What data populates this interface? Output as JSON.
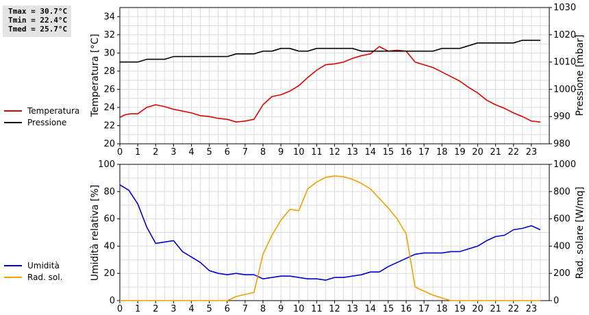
{
  "stats": {
    "tmax": "Tmax = 30.7°C",
    "tmin": "Tmin = 22.4°C",
    "tmed": "Tmed = 25.7°C"
  },
  "chart_data": [
    {
      "type": "line",
      "title": "",
      "xlabel": "",
      "ylabel": "Temperatura [°C]",
      "y2label": "Pressione [mbar]",
      "xlim": [
        0,
        24
      ],
      "ylim": [
        20,
        35
      ],
      "y2lim": [
        980,
        1030
      ],
      "xticks": [
        "0",
        "1",
        "2",
        "3",
        "4",
        "5",
        "6",
        "7",
        "8",
        "9",
        "10",
        "11",
        "12",
        "13",
        "14",
        "15",
        "16",
        "17",
        "18",
        "19",
        "20",
        "21",
        "22",
        "23"
      ],
      "yticks": [
        "20",
        "22",
        "24",
        "26",
        "28",
        "30",
        "32",
        "34"
      ],
      "y2ticks": [
        "980",
        "990",
        "1000",
        "1010",
        "1020",
        "1030"
      ],
      "grid": true,
      "legend": "left",
      "colors": {
        "Temperatura": "#dd0000",
        "Pressione": "#000000"
      },
      "series": [
        {
          "name": "Temperatura",
          "axis": "left",
          "points": [
            [
              0,
              22.9
            ],
            [
              0.3,
              23.2
            ],
            [
              0.6,
              23.3
            ],
            [
              1,
              23.3
            ],
            [
              1.5,
              24.0
            ],
            [
              2,
              24.3
            ],
            [
              2.5,
              24.1
            ],
            [
              3,
              23.8
            ],
            [
              3.5,
              23.6
            ],
            [
              4,
              23.4
            ],
            [
              4.5,
              23.1
            ],
            [
              5,
              23.0
            ],
            [
              5.5,
              22.8
            ],
            [
              6,
              22.7
            ],
            [
              6.5,
              22.4
            ],
            [
              7,
              22.5
            ],
            [
              7.5,
              22.7
            ],
            [
              8,
              24.3
            ],
            [
              8.5,
              25.2
            ],
            [
              9,
              25.4
            ],
            [
              9.5,
              25.8
            ],
            [
              10,
              26.4
            ],
            [
              10.5,
              27.3
            ],
            [
              11,
              28.1
            ],
            [
              11.5,
              28.7
            ],
            [
              12,
              28.8
            ],
            [
              12.5,
              29.0
            ],
            [
              13,
              29.4
            ],
            [
              13.5,
              29.7
            ],
            [
              14,
              29.9
            ],
            [
              14.5,
              30.7
            ],
            [
              15,
              30.2
            ],
            [
              15.5,
              30.3
            ],
            [
              16,
              30.2
            ],
            [
              16.5,
              29.0
            ],
            [
              17,
              28.7
            ],
            [
              17.5,
              28.4
            ],
            [
              18,
              27.9
            ],
            [
              18.5,
              27.4
            ],
            [
              19,
              26.9
            ],
            [
              19.5,
              26.2
            ],
            [
              20,
              25.6
            ],
            [
              20.5,
              24.8
            ],
            [
              21,
              24.3
            ],
            [
              21.5,
              23.9
            ],
            [
              22,
              23.4
            ],
            [
              22.5,
              23.0
            ],
            [
              23,
              22.5
            ],
            [
              23.5,
              22.4
            ]
          ]
        },
        {
          "name": "Pressione",
          "axis": "right",
          "points": [
            [
              0,
              1010
            ],
            [
              1,
              1010
            ],
            [
              1.5,
              1011
            ],
            [
              2.5,
              1011
            ],
            [
              3,
              1012
            ],
            [
              6,
              1012
            ],
            [
              6.5,
              1013
            ],
            [
              7.5,
              1013
            ],
            [
              8,
              1014
            ],
            [
              8.5,
              1014
            ],
            [
              9,
              1015
            ],
            [
              9.5,
              1015
            ],
            [
              10,
              1014
            ],
            [
              10.5,
              1014
            ],
            [
              11,
              1015
            ],
            [
              13,
              1015
            ],
            [
              13.5,
              1014
            ],
            [
              16.5,
              1014
            ],
            [
              17.5,
              1014
            ],
            [
              18,
              1015
            ],
            [
              19,
              1015
            ],
            [
              20,
              1017
            ],
            [
              21.5,
              1017
            ],
            [
              22,
              1017
            ],
            [
              22.5,
              1018
            ],
            [
              23.5,
              1018
            ]
          ]
        }
      ]
    },
    {
      "type": "line",
      "title": "",
      "xlabel": "",
      "ylabel": "Umidità relativa [%]",
      "y2label": "Rad. solare [W/mq]",
      "xlim": [
        0,
        24
      ],
      "ylim": [
        0,
        100
      ],
      "y2lim": [
        0,
        1000
      ],
      "xticks": [
        "0",
        "1",
        "2",
        "3",
        "4",
        "5",
        "6",
        "7",
        "8",
        "9",
        "10",
        "11",
        "12",
        "13",
        "14",
        "15",
        "16",
        "17",
        "18",
        "19",
        "20",
        "21",
        "22",
        "23"
      ],
      "yticks": [
        "0",
        "20",
        "40",
        "60",
        "80",
        "100"
      ],
      "y2ticks": [
        "0",
        "200",
        "400",
        "600",
        "800",
        "1000"
      ],
      "grid": true,
      "legend": "left",
      "colors": {
        "Umidità": "#0000cc",
        "Rad. sol.": "#f0a000"
      },
      "series": [
        {
          "name": "Umidità",
          "axis": "left",
          "points": [
            [
              0,
              85
            ],
            [
              0.5,
              81
            ],
            [
              1,
              71
            ],
            [
              1.5,
              54
            ],
            [
              2,
              42
            ],
            [
              2.5,
              43
            ],
            [
              3,
              44
            ],
            [
              3.5,
              36
            ],
            [
              4,
              32
            ],
            [
              4.5,
              28
            ],
            [
              5,
              22
            ],
            [
              5.5,
              20
            ],
            [
              6,
              19
            ],
            [
              6.5,
              20
            ],
            [
              7,
              19
            ],
            [
              7.5,
              19
            ],
            [
              8,
              16
            ],
            [
              8.5,
              17
            ],
            [
              9,
              18
            ],
            [
              9.5,
              18
            ],
            [
              10,
              17
            ],
            [
              10.5,
              16
            ],
            [
              11,
              16
            ],
            [
              11.5,
              15
            ],
            [
              12,
              17
            ],
            [
              12.5,
              17
            ],
            [
              13,
              18
            ],
            [
              13.5,
              19
            ],
            [
              14,
              21
            ],
            [
              14.5,
              21
            ],
            [
              15,
              25
            ],
            [
              15.5,
              28
            ],
            [
              16,
              31
            ],
            [
              16.5,
              34
            ],
            [
              17,
              35
            ],
            [
              18,
              35
            ],
            [
              18.5,
              36
            ],
            [
              19,
              36
            ],
            [
              19.5,
              38
            ],
            [
              20,
              40
            ],
            [
              20.5,
              44
            ],
            [
              21,
              47
            ],
            [
              21.5,
              48
            ],
            [
              22,
              52
            ],
            [
              22.5,
              53
            ],
            [
              23,
              55
            ],
            [
              23.5,
              52
            ]
          ]
        },
        {
          "name": "Rad. sol.",
          "axis": "right",
          "points": [
            [
              0,
              0
            ],
            [
              6,
              0
            ],
            [
              6.5,
              30
            ],
            [
              7,
              45
            ],
            [
              7.5,
              60
            ],
            [
              8,
              340
            ],
            [
              8.5,
              480
            ],
            [
              9,
              590
            ],
            [
              9.5,
              670
            ],
            [
              10,
              660
            ],
            [
              10.5,
              820
            ],
            [
              11,
              870
            ],
            [
              11.5,
              905
            ],
            [
              12,
              915
            ],
            [
              12.5,
              910
            ],
            [
              13,
              890
            ],
            [
              13.5,
              860
            ],
            [
              14,
              820
            ],
            [
              14.5,
              750
            ],
            [
              15,
              680
            ],
            [
              15.5,
              600
            ],
            [
              16,
              490
            ],
            [
              16.5,
              100
            ],
            [
              17,
              70
            ],
            [
              17.5,
              40
            ],
            [
              18,
              20
            ],
            [
              18.5,
              0
            ],
            [
              23.5,
              0
            ]
          ]
        }
      ]
    }
  ]
}
